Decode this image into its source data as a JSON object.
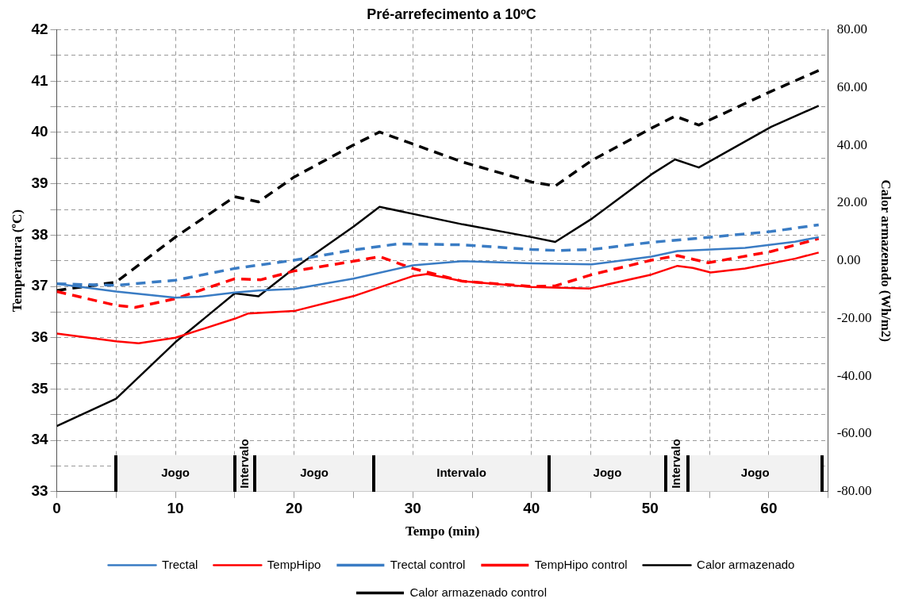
{
  "chart_data": {
    "type": "line",
    "title": "Pré-arrefecimento a 10ºC",
    "xlabel": "Tempo (min)",
    "ylabel": "Temperatura (ºC)",
    "y2label": "Calor armazenado (Wh/m2)",
    "xlim": [
      0,
      65
    ],
    "xticks": [
      0,
      {
        "value": 5,
        "label": null
      },
      10,
      {
        "value": 15,
        "label": null
      },
      20,
      {
        "value": 25,
        "label": null
      },
      30,
      {
        "value": 35,
        "label": null
      },
      40,
      {
        "value": 45,
        "label": null
      },
      50,
      {
        "value": 55,
        "label": null
      },
      60,
      {
        "value": 65,
        "label": null
      }
    ],
    "ylim": [
      33,
      42
    ],
    "yticks": [
      33,
      {
        "value": 33.5,
        "label": null
      },
      34,
      {
        "value": 34.5,
        "label": null
      },
      35,
      {
        "value": 35.5,
        "label": null
      },
      36,
      {
        "value": 36.5,
        "label": null
      },
      37,
      {
        "value": 37.5,
        "label": null
      },
      38,
      {
        "value": 38.5,
        "label": null
      },
      39,
      {
        "value": 39.5,
        "label": null
      },
      40,
      {
        "value": 40.5,
        "label": null
      },
      41,
      {
        "value": 41.5,
        "label": null
      },
      42
    ],
    "y2lim": [
      -80,
      80
    ],
    "y2ticks": [
      {
        "value": -80,
        "label": "-80.00"
      },
      {
        "value": -60,
        "label": "-60.00"
      },
      {
        "value": -40,
        "label": "-40.00"
      },
      {
        "value": -20,
        "label": "-20.00"
      },
      {
        "value": 0,
        "label": "0.00"
      },
      {
        "value": 20,
        "label": "20.00"
      },
      {
        "value": 40,
        "label": "40.00"
      },
      {
        "value": 60,
        "label": "60.00"
      },
      {
        "value": 80,
        "label": "80.00"
      }
    ],
    "grid": true,
    "legend": "bottom",
    "marker": "none",
    "bands": [
      {
        "axis": "x",
        "from": 5,
        "to": 15,
        "label": "Jogo",
        "color": "#f2f2f2"
      },
      {
        "axis": "x",
        "from": 15,
        "to": 16.7,
        "label": "Intervalo",
        "color": "#f2f2f2"
      },
      {
        "axis": "x",
        "from": 16.7,
        "to": 26.7,
        "label": "Jogo",
        "color": "#f2f2f2"
      },
      {
        "axis": "x",
        "from": 26.7,
        "to": 41.5,
        "label": "Intervalo",
        "color": "#f2f2f2"
      },
      {
        "axis": "x",
        "from": 41.5,
        "to": 51.3,
        "label": "Jogo",
        "color": "#f2f2f2"
      },
      {
        "axis": "x",
        "from": 51.3,
        "to": 53.2,
        "label": "Intervalo",
        "color": "#f2f2f2"
      },
      {
        "axis": "x",
        "from": 53.2,
        "to": 64.5,
        "label": "Jogo",
        "color": "#f2f2f2"
      }
    ],
    "series": [
      {
        "name": "Trectal",
        "color": "#3a7cc4",
        "line_style": "solid",
        "x": [
          0,
          5,
          10,
          12,
          15,
          17,
          20,
          25,
          30,
          34.2,
          40,
          45.1,
          50.1,
          52.3,
          58,
          62.2,
          64.2
        ],
        "values": [
          37.05,
          36.9,
          36.78,
          36.8,
          36.88,
          36.92,
          36.95,
          37.15,
          37.41,
          37.49,
          37.45,
          37.43,
          37.58,
          37.69,
          37.75,
          37.87,
          37.96
        ]
      },
      {
        "name": "TempHipo",
        "color": "#ff0000",
        "line_style": "solid",
        "x": [
          0,
          5,
          6.9,
          10,
          15,
          16.1,
          18.2,
          20,
          25,
          30,
          31.2,
          34.2,
          40,
          44.9,
          50.1,
          52.3,
          53.6,
          55.1,
          58,
          62.2,
          64.2
        ],
        "values": [
          36.08,
          35.93,
          35.89,
          36.0,
          36.37,
          36.47,
          36.5,
          36.52,
          36.81,
          37.2,
          37.24,
          37.1,
          36.99,
          36.96,
          37.23,
          37.4,
          37.36,
          37.27,
          37.35,
          37.54,
          37.66
        ]
      },
      {
        "name": "Trectal control",
        "color": "#3a7cc4",
        "line_style": "dashed",
        "x": [
          0,
          5,
          10,
          15,
          20,
          25,
          28.8,
          34.2,
          40,
          42.2,
          45.1,
          50.1,
          55.1,
          60.2,
          64.2
        ],
        "values": [
          37.05,
          37.02,
          37.12,
          37.35,
          37.51,
          37.71,
          37.83,
          37.81,
          37.72,
          37.7,
          37.72,
          37.86,
          37.96,
          38.07,
          38.2
        ]
      },
      {
        "name": "TempHipo control",
        "color": "#ff0000",
        "line_style": "dashed",
        "x": [
          0,
          5,
          6.6,
          10,
          15,
          17.2,
          20,
          25,
          27.2,
          30,
          34.2,
          40,
          42,
          45.1,
          50.1,
          52.3,
          54.9,
          60.2,
          64.2
        ],
        "values": [
          36.9,
          36.63,
          36.59,
          36.76,
          37.15,
          37.13,
          37.3,
          37.49,
          37.58,
          37.35,
          37.1,
          37.0,
          37.01,
          37.23,
          37.51,
          37.6,
          37.46,
          37.68,
          37.93
        ]
      },
      {
        "name": "Calor armazenado",
        "color": "#000000",
        "line_style": "solid",
        "axis": "y2",
        "x": [
          0,
          5,
          10,
          15,
          17,
          20,
          25,
          27.2,
          34.2,
          40,
          42,
          45.1,
          50.1,
          52.1,
          54.1,
          60.2,
          64.2
        ],
        "values": [
          -57.3,
          -47.8,
          -28.2,
          -11.3,
          -12.3,
          -2.6,
          11.8,
          18.7,
          12.6,
          8.2,
          6.5,
          14.6,
          29.9,
          35.1,
          32.3,
          46.4,
          53.7
        ]
      },
      {
        "name": "Calor armazenado control",
        "color": "#000000",
        "line_style": "dashed",
        "axis": "y2",
        "x": [
          0,
          5,
          10,
          15,
          17,
          20,
          25,
          27.2,
          34.2,
          40,
          42,
          45.1,
          50.1,
          52.1,
          54.1,
          60.2,
          64.2
        ],
        "values": [
          -10.3,
          -7.4,
          8.2,
          22.2,
          20.4,
          29.0,
          40.1,
          44.6,
          34.2,
          27.3,
          25.9,
          34.8,
          45.9,
          50.1,
          47.0,
          58.7,
          65.9
        ]
      }
    ]
  }
}
